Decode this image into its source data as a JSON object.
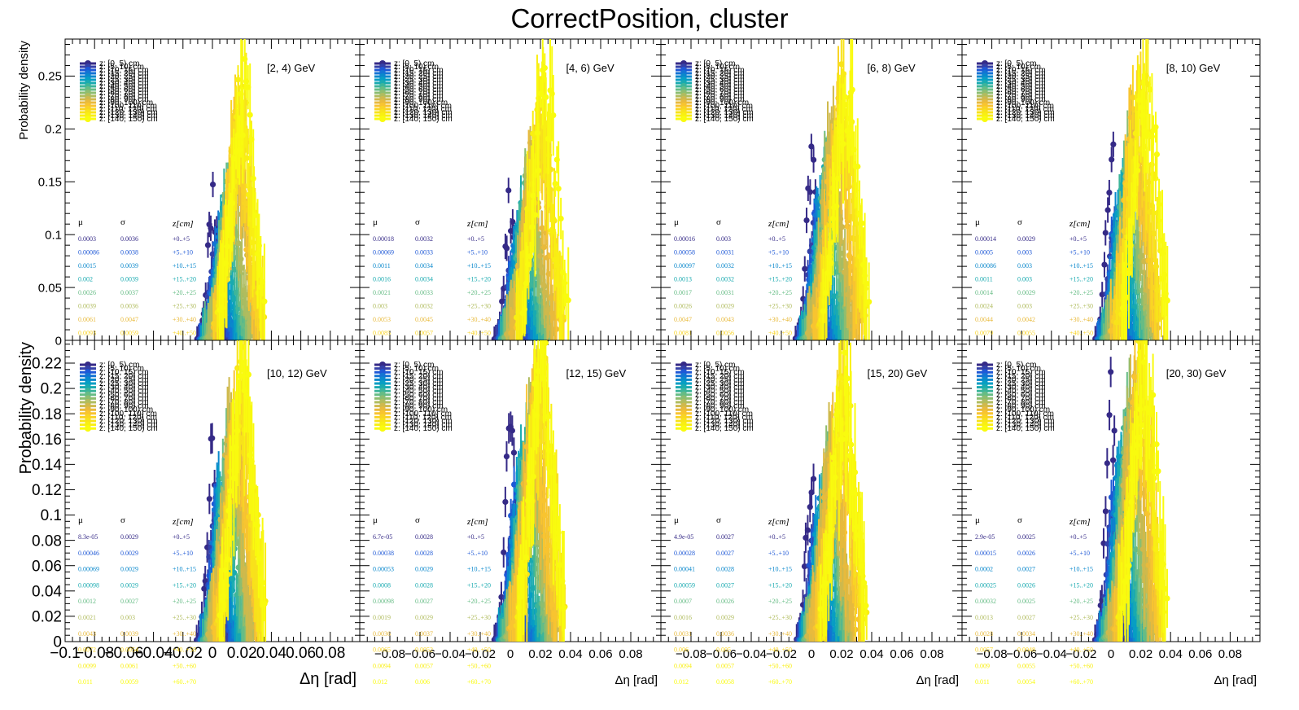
{
  "title": "CorrectPosition, cluster",
  "x_label": "Δη  [rad]",
  "y_label": "Probability density",
  "legend_entries": [
    "z: [0, 5) cm",
    "z: [5, 10) cm",
    "z: [10, 15) cm",
    "z: [15, 20) cm",
    "z: [20, 25) cm",
    "z: [25, 30) cm",
    "z: [30, 40) cm",
    "z: [40, 50) cm",
    "z: [50, 60) cm",
    "z: [60, 70) cm",
    "z: [70, 80) cm",
    "z: [80, 90) cm",
    "z: [90, 100) cm",
    "z: [100, 110) cm",
    "z: [110, 120) cm",
    "z: [120, 130) cm",
    "z: [130, 140) cm",
    "z: [140, 150) cm"
  ],
  "series_colors": [
    "#352a87",
    "#3440a8",
    "#1e58d6",
    "#1373d4",
    "#0a88cc",
    "#079ec4",
    "#19aab0",
    "#3db59a",
    "#66bc85",
    "#8dbd70",
    "#b0bc5e",
    "#cfb94c",
    "#e8ba3c",
    "#f8c430",
    "#f9d424",
    "#f8e31a",
    "#f9ef12",
    "#f9fb0e"
  ],
  "stats_headers": {
    "mu": "μ",
    "sigma": "σ",
    "z": "z[cm]"
  },
  "z_bins_text": [
    "+0..+5",
    "+5..+10",
    "+10..+15",
    "+15..+20",
    "+20..+25",
    "+25..+30",
    "+30..+40",
    "+40..+50",
    "+50..+60",
    "+60..+70"
  ],
  "chart_data": [
    {
      "type": "scatter",
      "energy_label": "[2, 4) GeV",
      "xlim": [
        -0.1,
        0.1
      ],
      "ylim": [
        0,
        0.285
      ],
      "y_ticks": [
        0,
        0.05,
        0.1,
        0.15,
        0.2,
        0.25
      ],
      "y_tick_labels": [
        "0",
        "0.05",
        "0.1",
        "0.15",
        "0.2",
        "0.25"
      ],
      "x_tick_labels": [],
      "first_peak_x": 0.0003,
      "first_peak_y": 0.124,
      "main_peak_x": 0.022,
      "main_peak_y": 0.28,
      "stats_mu": [
        "0.0003",
        "0.00086",
        "0.0015",
        "0.002",
        "0.0026",
        "0.0039",
        "0.0061",
        "0.0093"
      ],
      "stats_sigma": [
        "0.0036",
        "0.0038",
        "0.0039",
        "0.0039",
        "0.0037",
        "0.0036",
        "0.0047",
        "0.0059"
      ]
    },
    {
      "type": "scatter",
      "energy_label": "[4, 6) GeV",
      "xlim": [
        -0.1,
        0.1
      ],
      "ylim": [
        0,
        0.285
      ],
      "y_ticks": [],
      "y_tick_labels": [],
      "x_tick_labels": [],
      "first_peak_x": 0.00018,
      "first_peak_y": 0.128,
      "main_peak_x": 0.023,
      "main_peak_y": 0.28,
      "stats_mu": [
        "0.00018",
        "0.00069",
        "0.0011",
        "0.0016",
        "0.0021",
        "0.003",
        "0.0053",
        "0.0085"
      ],
      "stats_sigma": [
        "0.0032",
        "0.0033",
        "0.0034",
        "0.0034",
        "0.0033",
        "0.0032",
        "0.0045",
        "0.0057"
      ]
    },
    {
      "type": "scatter",
      "energy_label": "[6, 8) GeV",
      "xlim": [
        -0.1,
        0.1
      ],
      "ylim": [
        0,
        0.285
      ],
      "y_ticks": [],
      "y_tick_labels": [],
      "x_tick_labels": [],
      "first_peak_x": 0.00016,
      "first_peak_y": 0.172,
      "main_peak_x": 0.023,
      "main_peak_y": 0.28,
      "stats_mu": [
        "0.00016",
        "0.00058",
        "0.00097",
        "0.0013",
        "0.0017",
        "0.0026",
        "0.0047",
        "0.0081"
      ],
      "stats_sigma": [
        "0.003",
        "0.0031",
        "0.0032",
        "0.0032",
        "0.0031",
        "0.0029",
        "0.0043",
        "0.0056"
      ]
    },
    {
      "type": "scatter",
      "energy_label": "[8, 10) GeV",
      "xlim": [
        -0.1,
        0.1
      ],
      "ylim": [
        0,
        0.285
      ],
      "y_ticks": [],
      "y_tick_labels": [],
      "x_tick_labels": [],
      "first_peak_x": 0.00014,
      "first_peak_y": 0.168,
      "main_peak_x": 0.023,
      "main_peak_y": 0.28,
      "stats_mu": [
        "0.00014",
        "0.0005",
        "0.00086",
        "0.0011",
        "0.0014",
        "0.0024",
        "0.0044",
        "0.0079"
      ],
      "stats_sigma": [
        "0.0029",
        "0.003",
        "0.003",
        "0.003",
        "0.0029",
        "0.003",
        "0.0042",
        "0.0055"
      ]
    },
    {
      "type": "scatter",
      "energy_label": "[10, 12) GeV",
      "xlim": [
        -0.1,
        0.1
      ],
      "ylim": [
        0,
        0.238
      ],
      "y_ticks": [
        0,
        0.02,
        0.04,
        0.06,
        0.08,
        0.1,
        0.12,
        0.14,
        0.16,
        0.18,
        0.2,
        0.22
      ],
      "y_tick_labels": [
        "0",
        "0.02",
        "0.04",
        "0.06",
        "0.08",
        "0.1",
        "0.12",
        "0.14",
        "0.16",
        "0.18",
        "0.2",
        "0.22"
      ],
      "x_ticks": [
        -0.1,
        -0.08,
        -0.06,
        -0.04,
        -0.02,
        0,
        0.02,
        0.04,
        0.06,
        0.08
      ],
      "x_tick_labels": [
        "−0.1",
        "−0.08",
        "−0.06",
        "−0.04",
        "−0.02",
        "0",
        "0.02",
        "0.04",
        "0.06",
        "0.08"
      ],
      "first_peak_x": 8.3e-05,
      "first_peak_y": 0.158,
      "main_peak_x": 0.022,
      "main_peak_y": 0.235,
      "stats_mu": [
        "8.3e-05",
        "0.00046",
        "0.00069",
        "0.00098",
        "0.0012",
        "0.0021",
        "0.0043",
        "0.0072",
        "0.0099",
        "0.011"
      ],
      "stats_sigma": [
        "0.0029",
        "0.0029",
        "0.0029",
        "0.0029",
        "0.0027",
        "0.003",
        "0.0039",
        "0.0054",
        "0.0061",
        "0.0059"
      ]
    },
    {
      "type": "scatter",
      "energy_label": "[12, 15) GeV",
      "xlim": [
        -0.1,
        0.1
      ],
      "ylim": [
        0,
        0.238
      ],
      "y_ticks": [],
      "y_tick_labels": [],
      "x_ticks": [
        -0.08,
        -0.06,
        -0.04,
        -0.02,
        0,
        0.02,
        0.04,
        0.06,
        0.08
      ],
      "x_tick_labels": [
        "−0.08",
        "−0.06",
        "−0.04",
        "−0.02",
        "0",
        "0.02",
        "0.04",
        "0.06",
        "0.08"
      ],
      "first_peak_x": 6.7e-05,
      "first_peak_y": 0.168,
      "main_peak_x": 0.023,
      "main_peak_y": 0.235,
      "stats_mu": [
        "6.7e-05",
        "0.00038",
        "0.00053",
        "0.0008",
        "0.00098",
        "0.0019",
        "0.0036",
        "0.0065",
        "0.0094",
        "0.012"
      ],
      "stats_sigma": [
        "0.0028",
        "0.0028",
        "0.0029",
        "0.0028",
        "0.0027",
        "0.0029",
        "0.0037",
        "0.0052",
        "0.0057",
        "0.006"
      ]
    },
    {
      "type": "scatter",
      "energy_label": "[15, 20) GeV",
      "xlim": [
        -0.1,
        0.1
      ],
      "ylim": [
        0,
        0.238
      ],
      "y_ticks": [],
      "y_tick_labels": [],
      "x_ticks": [
        -0.08,
        -0.06,
        -0.04,
        -0.02,
        0,
        0.02,
        0.04,
        0.06,
        0.08
      ],
      "x_tick_labels": [
        "−0.08",
        "−0.06",
        "−0.04",
        "−0.02",
        "0",
        "0.02",
        "0.04",
        "0.06",
        "0.08"
      ],
      "first_peak_x": 4.9e-05,
      "first_peak_y": 0.128,
      "main_peak_x": 0.023,
      "main_peak_y": 0.235,
      "stats_mu": [
        "4.9e-05",
        "0.00028",
        "0.00041",
        "0.00059",
        "0.0007",
        "0.0016",
        "0.0031",
        "0.006",
        "0.0094",
        "0.012"
      ],
      "stats_sigma": [
        "0.0027",
        "0.0027",
        "0.0028",
        "0.0027",
        "0.0026",
        "0.0029",
        "0.0036",
        "0.005",
        "0.0057",
        "0.0058"
      ]
    },
    {
      "type": "scatter",
      "energy_label": "[20, 30) GeV",
      "xlim": [
        -0.1,
        0.1
      ],
      "ylim": [
        0,
        0.238
      ],
      "y_ticks": [],
      "y_tick_labels": [],
      "x_ticks": [
        -0.08,
        -0.06,
        -0.04,
        -0.02,
        0,
        0.02,
        0.04,
        0.06,
        0.08
      ],
      "x_tick_labels": [
        "−0.08",
        "−0.06",
        "−0.04",
        "−0.02",
        "0",
        "0.02",
        "0.04",
        "0.06",
        "0.08"
      ],
      "first_peak_x": 2.9e-05,
      "first_peak_y": 0.188,
      "main_peak_x": 0.023,
      "main_peak_y": 0.235,
      "stats_mu": [
        "2.9e-05",
        "0.00015",
        "0.0002",
        "0.00025",
        "0.00032",
        "0.0013",
        "0.0028",
        "0.0057",
        "0.009",
        "0.011"
      ],
      "stats_sigma": [
        "0.0025",
        "0.0026",
        "0.0027",
        "0.0026",
        "0.0025",
        "0.0027",
        "0.0034",
        "0.0048",
        "0.0055",
        "0.0054"
      ]
    }
  ]
}
